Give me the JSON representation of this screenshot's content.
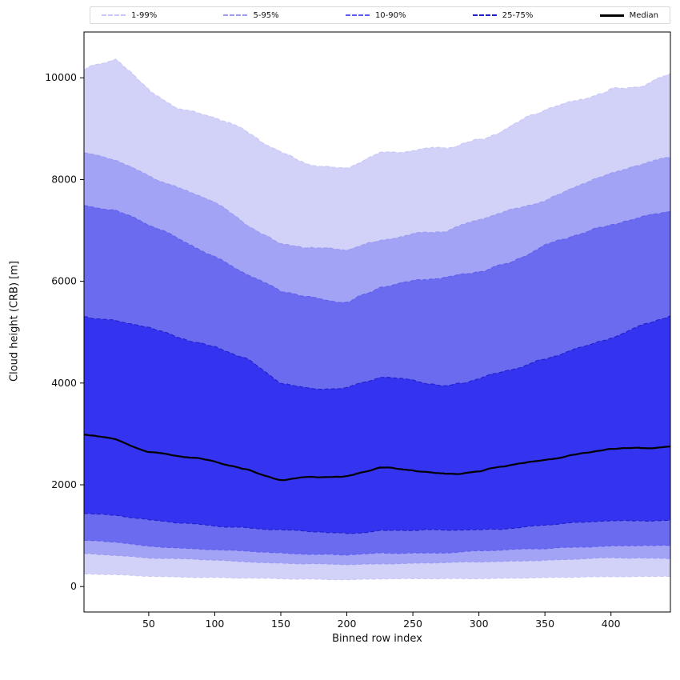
{
  "figure": {
    "xlabel": "Binned row index",
    "ylabel": "Cloud height (CRB) [m]"
  },
  "legend": [
    {
      "id": "1-99",
      "label": "1-99%",
      "color": "#c7c7f9",
      "style": "dashed"
    },
    {
      "id": "5-95",
      "label": "5-95%",
      "color": "#9a9af3",
      "style": "dashed"
    },
    {
      "id": "10-90",
      "label": "10-90%",
      "color": "#5f5fee",
      "style": "dashed"
    },
    {
      "id": "25-75",
      "label": "25-75%",
      "color": "#2020c8",
      "style": "dashed"
    },
    {
      "id": "median",
      "label": "Median",
      "color": "#000000",
      "style": "solid"
    }
  ],
  "chart_data": {
    "type": "area",
    "title": "",
    "xlabel": "Binned row index",
    "ylabel": "Cloud height (CRB) [m]",
    "xlim": [
      1,
      445
    ],
    "ylim": [
      -500,
      10900
    ],
    "xticks": [
      50,
      100,
      150,
      200,
      250,
      300,
      350,
      400
    ],
    "yticks": [
      0,
      2000,
      4000,
      6000,
      8000,
      10000
    ],
    "grid": false,
    "legend_position": "top",
    "x": [
      1,
      25,
      50,
      75,
      100,
      125,
      150,
      175,
      200,
      225,
      250,
      275,
      300,
      325,
      350,
      375,
      400,
      425,
      445
    ],
    "series": [
      {
        "name": "p99",
        "percentile": 99,
        "values": [
          10150,
          10350,
          9750,
          9400,
          9250,
          8900,
          8500,
          8300,
          8250,
          8500,
          8550,
          8650,
          8800,
          9050,
          9350,
          9550,
          9800,
          9850,
          10050
        ]
      },
      {
        "name": "p95",
        "percentile": 95,
        "values": [
          8500,
          8400,
          8100,
          7800,
          7550,
          7100,
          6750,
          6650,
          6600,
          6800,
          6950,
          7000,
          7200,
          7400,
          7600,
          7900,
          8100,
          8300,
          8450
        ]
      },
      {
        "name": "p90",
        "percentile": 90,
        "values": [
          7500,
          7400,
          7100,
          6800,
          6500,
          6150,
          5800,
          5650,
          5600,
          5900,
          6000,
          6050,
          6200,
          6400,
          6700,
          6900,
          7100,
          7300,
          7400
        ]
      },
      {
        "name": "p75",
        "percentile": 75,
        "values": [
          5300,
          5200,
          5100,
          4900,
          4700,
          4450,
          4000,
          3900,
          3900,
          4100,
          4050,
          3950,
          4100,
          4250,
          4450,
          4700,
          4900,
          5150,
          5300
        ]
      },
      {
        "name": "median",
        "percentile": 50,
        "values": [
          3000,
          2900,
          2650,
          2550,
          2450,
          2300,
          2100,
          2150,
          2150,
          2350,
          2300,
          2200,
          2250,
          2400,
          2500,
          2600,
          2700,
          2720,
          2750
        ]
      },
      {
        "name": "p25",
        "percentile": 25,
        "values": [
          1450,
          1400,
          1300,
          1250,
          1200,
          1150,
          1100,
          1080,
          1050,
          1100,
          1100,
          1100,
          1120,
          1150,
          1200,
          1250,
          1300,
          1300,
          1300
        ]
      },
      {
        "name": "p10",
        "percentile": 10,
        "values": [
          900,
          870,
          800,
          760,
          720,
          690,
          660,
          640,
          620,
          650,
          660,
          670,
          700,
          720,
          750,
          780,
          800,
          800,
          800
        ]
      },
      {
        "name": "p05",
        "percentile": 5,
        "values": [
          650,
          620,
          560,
          540,
          520,
          490,
          460,
          440,
          430,
          450,
          460,
          470,
          480,
          500,
          520,
          540,
          560,
          560,
          560
        ]
      },
      {
        "name": "p01",
        "percentile": 1,
        "values": [
          250,
          230,
          200,
          190,
          180,
          165,
          150,
          145,
          140,
          150,
          150,
          155,
          160,
          165,
          170,
          185,
          200,
          200,
          200
        ]
      }
    ],
    "bands": [
      {
        "label": "1-99%",
        "upper": "p99",
        "lower": "p01",
        "fill": "#d2d2f9",
        "edge": "#c7c7f9"
      },
      {
        "label": "5-95%",
        "upper": "p95",
        "lower": "p05",
        "fill": "#a3a3f5",
        "edge": "#9a9af3"
      },
      {
        "label": "10-90%",
        "upper": "p90",
        "lower": "p10",
        "fill": "#6b6bf0",
        "edge": "#5f5fee"
      },
      {
        "label": "25-75%",
        "upper": "p75",
        "lower": "p25",
        "fill": "#3333f0",
        "edge": "#2020c8"
      }
    ],
    "median": {
      "label": "Median",
      "color": "#000000"
    }
  }
}
